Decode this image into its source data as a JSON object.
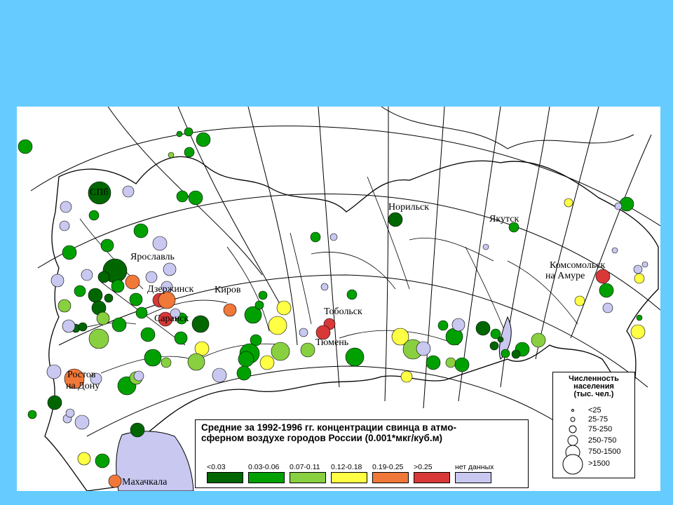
{
  "map": {
    "cities": [
      {
        "name": "СПб"
      },
      {
        "name": "Норильск"
      },
      {
        "name": "Якутск"
      },
      {
        "name": "Ярославль"
      },
      {
        "name": "Комсомольск"
      },
      {
        "name": "на Амуре"
      },
      {
        "name": "Дзержинск"
      },
      {
        "name": "Киров"
      },
      {
        "name": "Тобольск"
      },
      {
        "name": "Саранск"
      },
      {
        "name": "Тюмень"
      },
      {
        "name": "Ростов"
      },
      {
        "name": "на Дону"
      },
      {
        "name": "Махачкала"
      }
    ]
  },
  "legend": {
    "title_line1": "Средние за 1992-1996 гг. концентрации свинца в атмо-",
    "title_line2": "сферном воздухе городов России (0.001*мкг/куб.м)",
    "classes": [
      {
        "label": "<0.03",
        "color": "#006600"
      },
      {
        "label": "0.03-0.06",
        "color": "#00a000"
      },
      {
        "label": "0.07-0.11",
        "color": "#88d040"
      },
      {
        "label": "0.12-0.18",
        "color": "#ffff44"
      },
      {
        "label": "0.19-0.25",
        "color": "#f07838"
      },
      {
        "label": ">0.25",
        "color": "#d83838"
      },
      {
        "label": "нет данных",
        "color": "#c8c8f0"
      }
    ]
  },
  "population_legend": {
    "title_line1": "Численность",
    "title_line2": "населения",
    "title_line3": "(тыс. чел.)",
    "classes": [
      "<25",
      "25-75",
      "75-250",
      "250-750",
      "750-1500",
      ">1500"
    ]
  }
}
